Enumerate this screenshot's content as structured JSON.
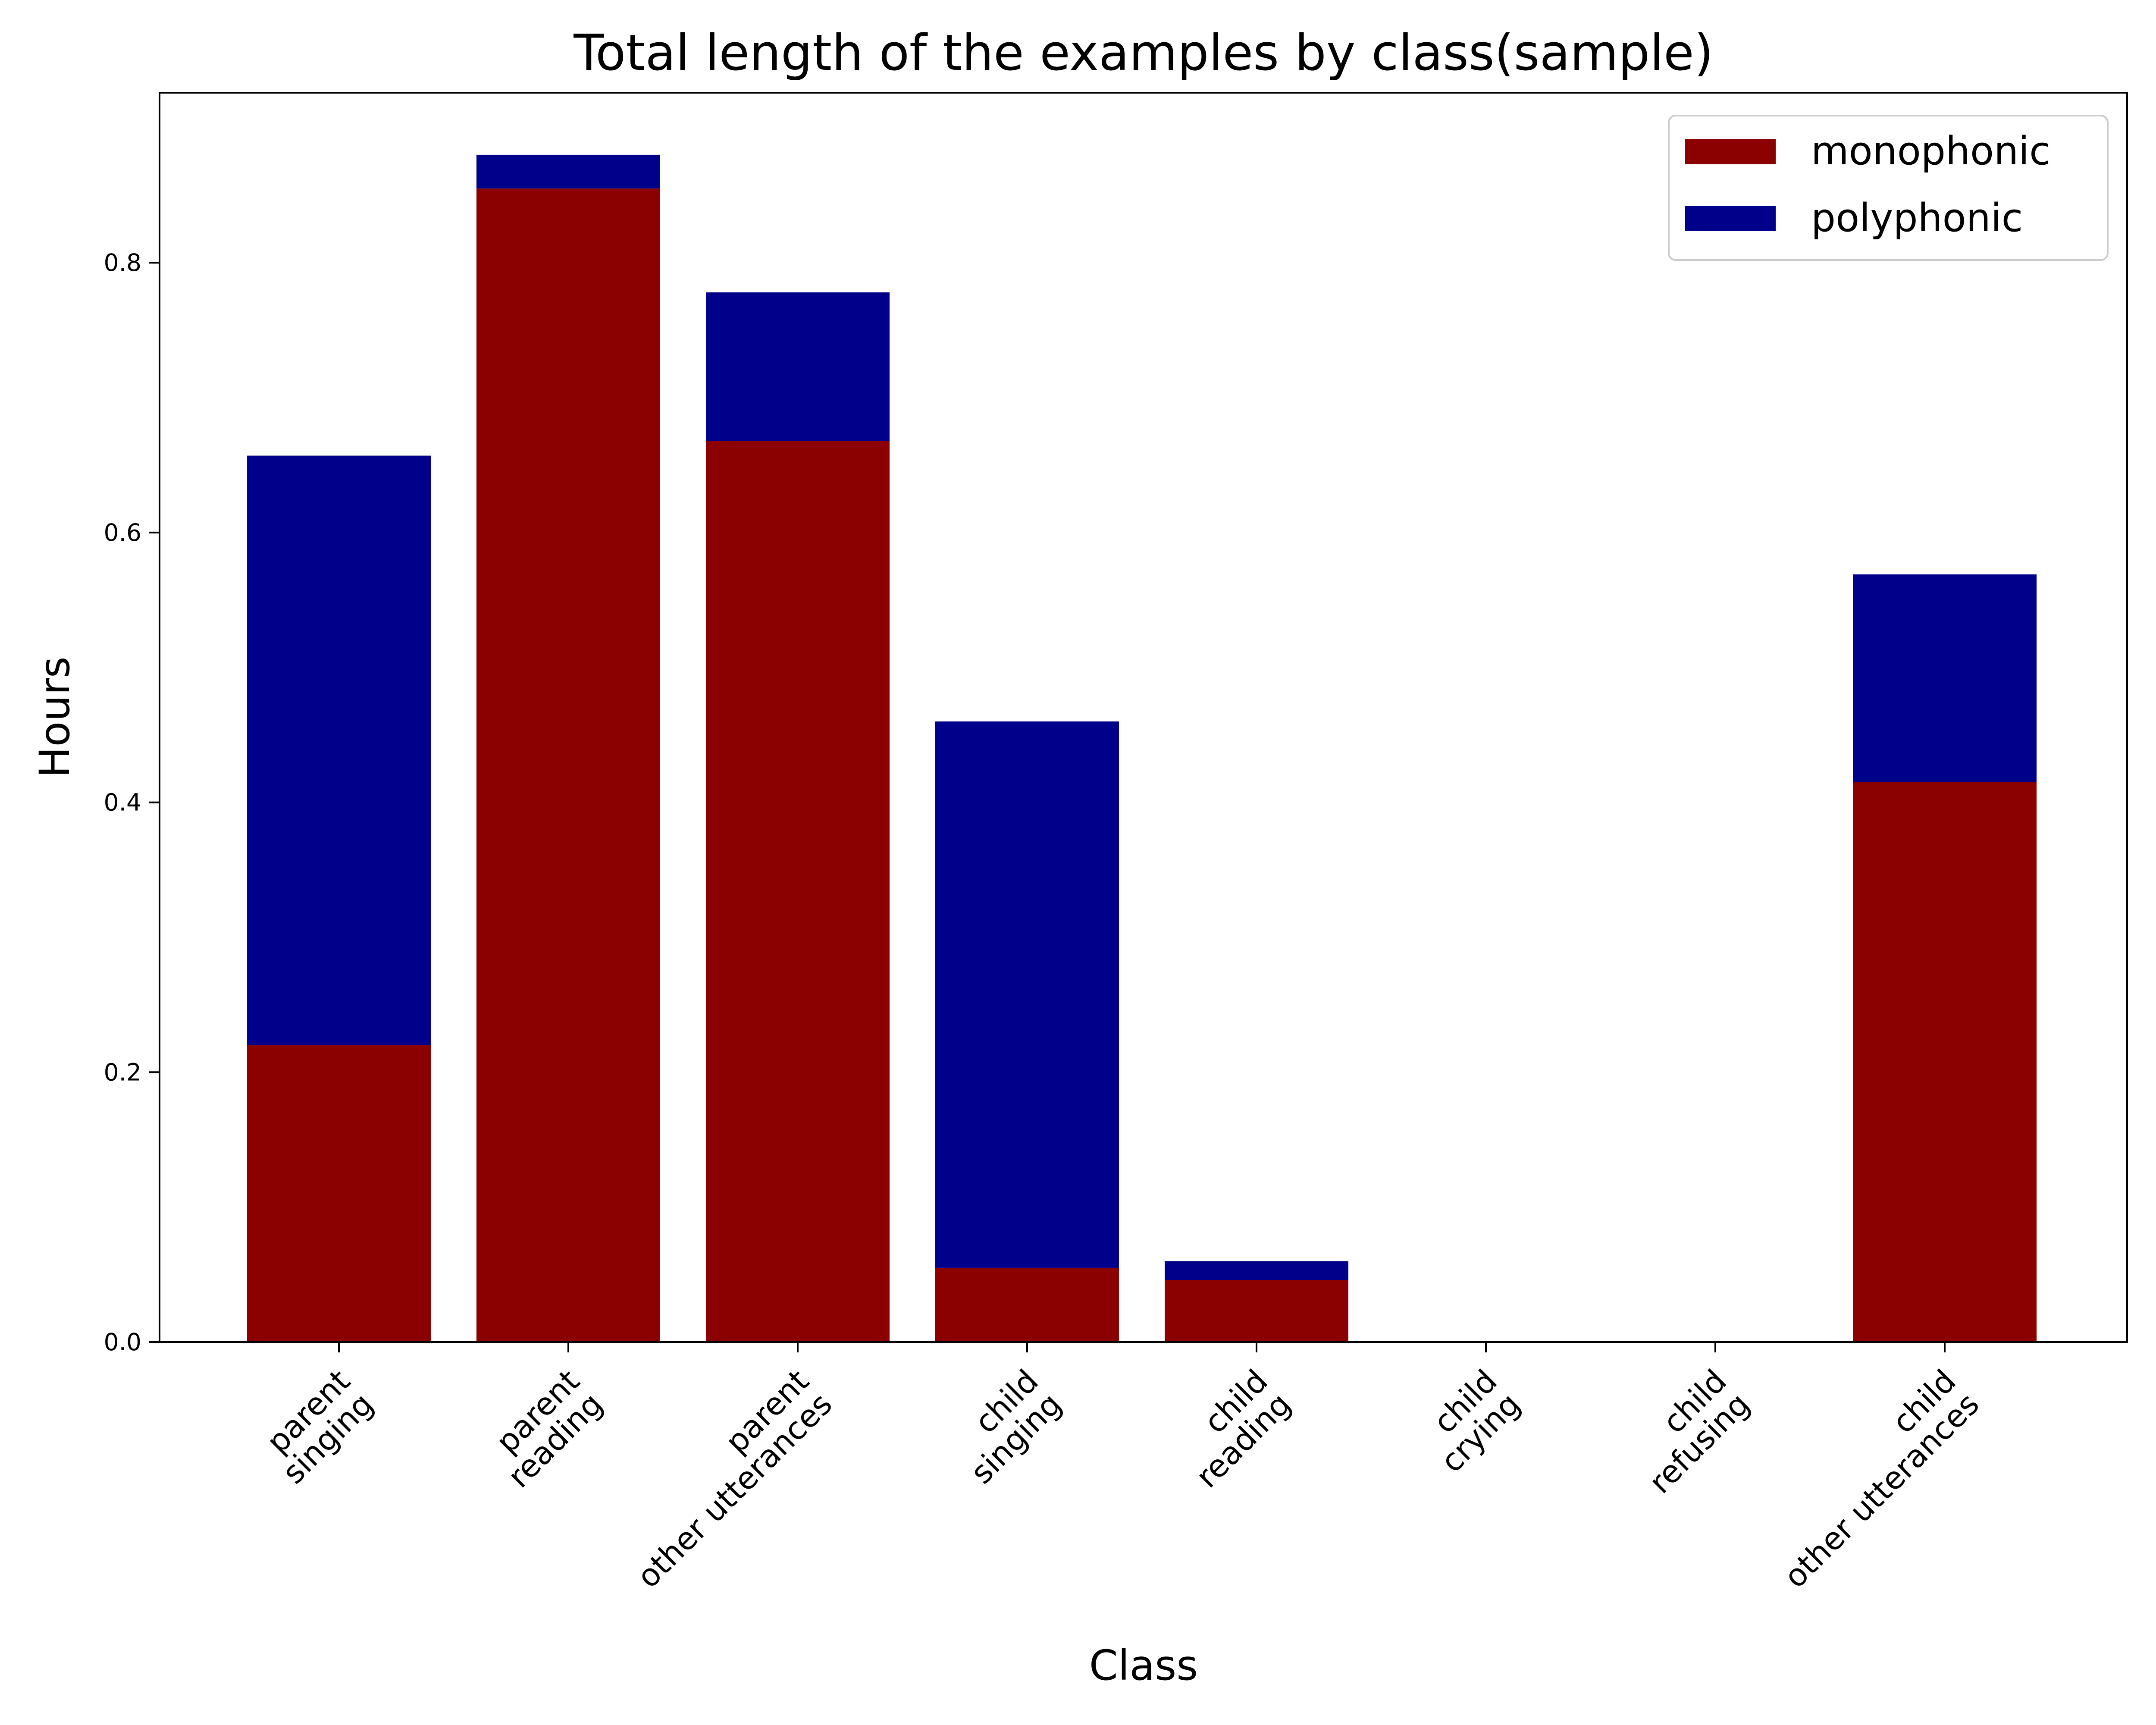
{
  "chart_data": {
    "type": "bar",
    "stacked": true,
    "title": "Total length of the examples by class(sample)",
    "xlabel": "Class",
    "ylabel": "Hours",
    "categories": [
      [
        "parent",
        "singing"
      ],
      [
        "parent",
        "reading"
      ],
      [
        "parent",
        "other utterances"
      ],
      [
        "child",
        "singing"
      ],
      [
        "child",
        "reading"
      ],
      [
        "child",
        "crying"
      ],
      [
        "child",
        "refusing"
      ],
      [
        "child",
        "other utterances"
      ]
    ],
    "series": [
      {
        "name": "monophonic",
        "color": "#8b0000",
        "values": [
          0.22,
          0.855,
          0.668,
          0.055,
          0.046,
          0.0,
          0.0,
          0.415
        ]
      },
      {
        "name": "polyphonic",
        "color": "#00008b",
        "values": [
          0.437,
          0.025,
          0.11,
          0.405,
          0.014,
          0.0,
          0.0,
          0.154
        ]
      }
    ],
    "ylim": [
      0,
      0.926
    ],
    "yticks": [
      "0.0",
      "0.2",
      "0.4",
      "0.6",
      "0.8"
    ],
    "ytick_values": [
      0,
      0.2,
      0.4,
      0.6,
      0.8
    ],
    "grid": false,
    "legend_position": "upper right"
  }
}
